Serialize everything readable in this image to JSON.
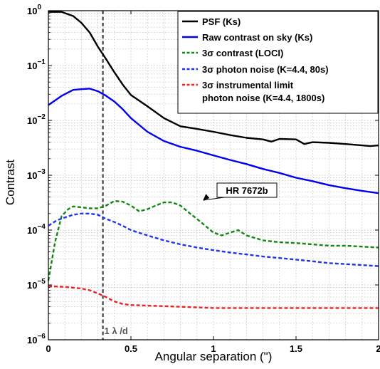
{
  "chart_data": {
    "type": "line",
    "title": "",
    "xlabel": "Angular separation (\")",
    "ylabel": "Contrast",
    "xlim": [
      0,
      2
    ],
    "ylim": [
      1e-06,
      1
    ],
    "yscale": "log",
    "grid": true,
    "legend_position": "top-right",
    "x_ticks": [
      {
        "value": 0,
        "label": "0"
      },
      {
        "value": 0.5,
        "label": "0.5"
      },
      {
        "value": 1,
        "label": "1"
      },
      {
        "value": 1.5,
        "label": "1.5"
      },
      {
        "value": 2,
        "label": "2"
      }
    ],
    "y_ticks": [
      {
        "value": 1e-06,
        "label": "10",
        "exp": "−6"
      },
      {
        "value": 1e-05,
        "label": "10",
        "exp": "−5"
      },
      {
        "value": 0.0001,
        "label": "10",
        "exp": "−4"
      },
      {
        "value": 0.001,
        "label": "10",
        "exp": "−3"
      },
      {
        "value": 0.01,
        "label": "10",
        "exp": "−2"
      },
      {
        "value": 0.1,
        "label": "10",
        "exp": "−1"
      },
      {
        "value": 1,
        "label": "10",
        "exp": "0"
      }
    ],
    "series": [
      {
        "name": "PSF (Ks)",
        "color": "#000000",
        "dash": "solid",
        "x": [
          0,
          0.08,
          0.15,
          0.2,
          0.25,
          0.3,
          0.35,
          0.4,
          0.45,
          0.5,
          0.6,
          0.7,
          0.8,
          0.9,
          1.0,
          1.1,
          1.2,
          1.3,
          1.35,
          1.4,
          1.5,
          1.55,
          1.6,
          1.7,
          1.8,
          1.9,
          1.95,
          2.0
        ],
        "y": [
          0.95,
          0.95,
          0.8,
          0.6,
          0.4,
          0.22,
          0.13,
          0.075,
          0.045,
          0.029,
          0.018,
          0.011,
          0.0078,
          0.007,
          0.0062,
          0.0054,
          0.0048,
          0.0045,
          0.0041,
          0.0046,
          0.0045,
          0.0037,
          0.004,
          0.0039,
          0.0037,
          0.0035,
          0.0034,
          0.0035
        ]
      },
      {
        "name": "Raw contrast on sky (Ks)",
        "color": "#0000ee",
        "dash": "solid",
        "x": [
          0,
          0.08,
          0.15,
          0.2,
          0.25,
          0.3,
          0.35,
          0.4,
          0.45,
          0.5,
          0.6,
          0.7,
          0.8,
          0.9,
          1.0,
          1.1,
          1.2,
          1.3,
          1.4,
          1.5,
          1.6,
          1.7,
          1.8,
          1.9,
          2.0
        ],
        "y": [
          0.019,
          0.028,
          0.036,
          0.037,
          0.038,
          0.034,
          0.028,
          0.022,
          0.016,
          0.011,
          0.0062,
          0.0042,
          0.0033,
          0.0028,
          0.0023,
          0.0019,
          0.0016,
          0.0013,
          0.0011,
          0.0009,
          0.00078,
          0.00066,
          0.00058,
          0.00052,
          0.00047
        ]
      },
      {
        "name": "3σ contrast (LOCI)",
        "color": "#118811",
        "dash": "dashed",
        "x": [
          0,
          0.04,
          0.08,
          0.12,
          0.15,
          0.2,
          0.25,
          0.3,
          0.35,
          0.4,
          0.45,
          0.5,
          0.55,
          0.6,
          0.65,
          0.7,
          0.75,
          0.8,
          0.85,
          0.9,
          0.95,
          1.0,
          1.05,
          1.1,
          1.15,
          1.2,
          1.3,
          1.4,
          1.5,
          1.6,
          1.7,
          1.8,
          1.9,
          2.0
        ],
        "y": [
          1.2e-05,
          6e-05,
          0.00018,
          0.00024,
          0.00027,
          0.00026,
          0.00025,
          0.00025,
          0.00028,
          0.00034,
          0.00033,
          0.00028,
          0.00022,
          0.00024,
          0.00028,
          0.00032,
          0.00032,
          0.00028,
          0.00021,
          0.00016,
          0.00012,
          9e-05,
          8e-05,
          9e-05,
          0.0001,
          8e-05,
          6.5e-05,
          6e-05,
          5.8e-05,
          5.5e-05,
          5.2e-05,
          5.2e-05,
          5e-05,
          4.8e-05
        ]
      },
      {
        "name": "3σ photon noise (K=4.4, 80s)",
        "color": "#2233ee",
        "dash": "dashed",
        "x": [
          0,
          0.05,
          0.1,
          0.15,
          0.2,
          0.25,
          0.3,
          0.35,
          0.4,
          0.45,
          0.5,
          0.6,
          0.7,
          0.8,
          0.9,
          1.0,
          1.1,
          1.2,
          1.3,
          1.4,
          1.5,
          1.6,
          1.7,
          1.8,
          1.9,
          2.0
        ],
        "y": [
          0.00012,
          0.00015,
          0.00017,
          0.00019,
          0.0002,
          0.0002,
          0.00019,
          0.00016,
          0.00014,
          0.00012,
          0.0001,
          8e-05,
          6.5e-05,
          5.5e-05,
          4.8e-05,
          4.3e-05,
          3.9e-05,
          3.6e-05,
          3.3e-05,
          3.1e-05,
          2.9e-05,
          2.7e-05,
          2.5e-05,
          2.4e-05,
          2.3e-05,
          2.2e-05
        ]
      },
      {
        "name": "3σ instrumental limit photon noise (K=4.4, 1800s)",
        "name_lines": [
          "3σ instrumental limit",
          "photon noise (K=4.4, 1800s)"
        ],
        "color": "#ee2222",
        "dash": "dashed",
        "x": [
          0,
          0.1,
          0.2,
          0.25,
          0.3,
          0.35,
          0.4,
          0.45,
          0.5,
          0.6,
          0.7,
          0.8,
          0.9,
          1.0,
          1.2,
          1.4,
          1.6,
          1.8,
          2.0
        ],
        "y": [
          9.5e-06,
          9.2e-06,
          8.6e-06,
          8e-06,
          7e-06,
          6e-06,
          5e-06,
          4.5e-06,
          4.3e-06,
          4.2e-06,
          4.1e-06,
          4e-06,
          3.9e-06,
          3.8e-06,
          3.8e-06,
          3.8e-06,
          3.8e-06,
          3.8e-06,
          3.8e-06
        ]
      }
    ],
    "vertical_line": {
      "x": 0.33,
      "label": "1 λ /d",
      "color": "#555555"
    },
    "annotation": {
      "text": "HR 7672b",
      "point_x": 0.95,
      "point_y": 0.00032
    }
  }
}
